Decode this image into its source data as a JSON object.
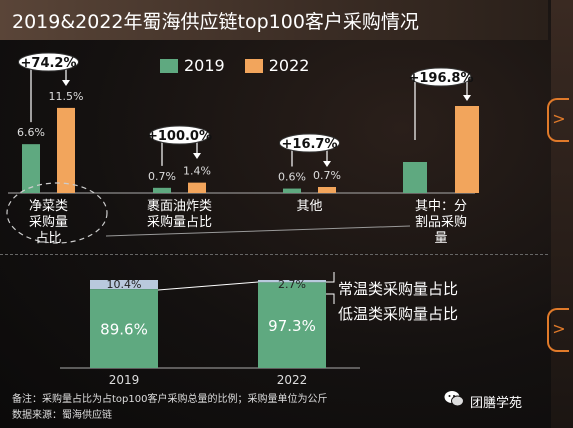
{
  "title": "2019&2022年蜀海供应链top100客户采购情况",
  "brand": "团膳学苑",
  "footnote_1": "备注：采购量占比为占top100客户采购总量的比例；采购量单位为公斤",
  "footnote_2": "数据来源：蜀海供应链",
  "colors": {
    "y2019": "#5fa980",
    "y2022": "#f2a55c",
    "accent": "#e07a2a",
    "low_temp_bar": "#b9c9dd"
  },
  "chart_data": [
    {
      "type": "bar",
      "categories": [
        "净菜类采购量占比",
        "裹面油炸类采购量占比",
        "其他",
        "其中：分割品采购量"
      ],
      "category_lines": [
        [
          "净菜类",
          "采购量",
          "占比"
        ],
        [
          "裹面油炸类",
          "采购量占比"
        ],
        [
          "其他"
        ],
        [
          "其中：分",
          "割品采购",
          "量"
        ]
      ],
      "series": [
        {
          "name": "2019",
          "values": [
            6.6,
            0.7,
            0.6,
            null
          ],
          "labels": [
            "6.6%",
            "0.7%",
            "0.6%",
            ""
          ]
        },
        {
          "name": "2022",
          "values": [
            11.5,
            1.4,
            0.7,
            null
          ],
          "labels": [
            "11.5%",
            "1.4%",
            "0.7%",
            ""
          ]
        }
      ],
      "growth_labels": [
        "+74.2%",
        "+100.0%",
        "+16.7%",
        "+196.8%"
      ],
      "legend": "top"
    },
    {
      "type": "bar",
      "stacked": true,
      "categories": [
        "2019",
        "2022"
      ],
      "series": [
        {
          "name": "常温类采购量占比",
          "values": [
            89.6,
            97.3
          ],
          "labels": [
            "89.6%",
            "97.3%"
          ]
        },
        {
          "name": "低温类采购量占比",
          "values": [
            10.4,
            2.7
          ],
          "labels": [
            "10.4%",
            "2.7%"
          ]
        }
      ],
      "legend": "right"
    }
  ]
}
